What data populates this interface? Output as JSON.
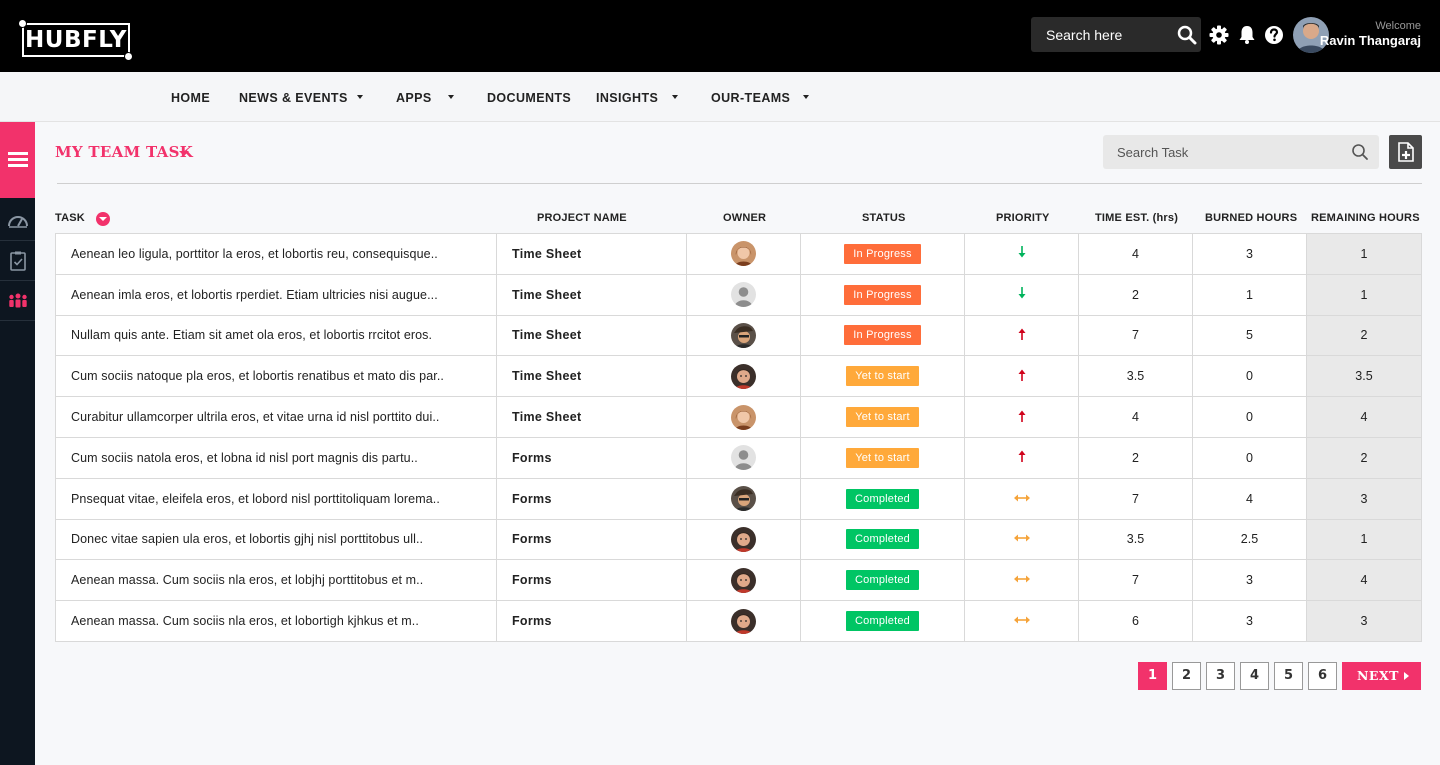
{
  "header": {
    "logo_text": "HUBFLY",
    "search_placeholder": "Search here",
    "welcome_label": "Welcome",
    "user_name": "Ravin Thangaraj"
  },
  "nav": {
    "items": [
      {
        "label": "HOME",
        "dropdown": false
      },
      {
        "label": "NEWS & EVENTS",
        "dropdown": true
      },
      {
        "label": "APPS",
        "dropdown": true
      },
      {
        "label": "DOCUMENTS",
        "dropdown": false
      },
      {
        "label": "INSIGHTS",
        "dropdown": true
      },
      {
        "label": "OUR-TEAMS",
        "dropdown": true
      }
    ]
  },
  "sidebar": {
    "icons": [
      "menu-icon",
      "dashboard-icon",
      "clipboard-icon",
      "team-icon"
    ]
  },
  "main": {
    "title": "MY TEAM TASK",
    "search_placeholder": "Search Task",
    "columns": [
      "TASK",
      "PROJECT NAME",
      "OWNER",
      "STATUS",
      "PRIORITY",
      "TIME EST. (hrs)",
      "BURNED HOURS",
      "REMAINING HOURS"
    ],
    "rows": [
      {
        "task": "Aenean leo ligula, porttitor la eros, et lobortis reu, consequisque..",
        "project": "Time Sheet",
        "owner": "woman-avatar",
        "status": "In Progress",
        "priority": "low",
        "est": "4",
        "burned": "3",
        "remaining": "1"
      },
      {
        "task": "Aenean imla eros, et lobortis rperdiet. Etiam ultricies nisi augue...",
        "project": "Time Sheet",
        "owner": "default-avatar",
        "status": "In Progress",
        "priority": "low",
        "est": "2",
        "burned": "1",
        "remaining": "1"
      },
      {
        "task": "Nullam quis ante. Etiam sit amet ola eros, et lobortis rrcitot eros.",
        "project": "Time Sheet",
        "owner": "hat-man-avatar",
        "status": "In Progress",
        "priority": "high",
        "est": "7",
        "burned": "5",
        "remaining": "2"
      },
      {
        "task": "Cum sociis natoque pla eros, et lobortis renatibus et mato dis par..",
        "project": "Time Sheet",
        "owner": "man-avatar",
        "status": "Yet to start",
        "priority": "high",
        "est": "3.5",
        "burned": "0",
        "remaining": "3.5"
      },
      {
        "task": "Curabitur ullamcorper ultrila eros, et vitae urna id nisl porttito dui..",
        "project": "Time Sheet",
        "owner": "woman-avatar",
        "status": "Yet to start",
        "priority": "high",
        "est": "4",
        "burned": "0",
        "remaining": "4"
      },
      {
        "task": "Cum sociis natola eros, et lobna id nisl port magnis dis partu..",
        "project": "Forms",
        "owner": "default-avatar",
        "status": "Yet to start",
        "priority": "high",
        "est": "2",
        "burned": "0",
        "remaining": "2"
      },
      {
        "task": "Pnsequat vitae, eleifela eros, et lobord nisl porttitoliquam lorema..",
        "project": "Forms",
        "owner": "hat-man-avatar",
        "status": "Completed",
        "priority": "medium",
        "est": "7",
        "burned": "4",
        "remaining": "3"
      },
      {
        "task": "Donec vitae sapien ula eros, et lobortis gjhj nisl porttitobus ull..",
        "project": "Forms",
        "owner": "man-avatar",
        "status": "Completed",
        "priority": "medium",
        "est": "3.5",
        "burned": "2.5",
        "remaining": "1"
      },
      {
        "task": "Aenean massa. Cum sociis nla eros, et lobjhj porttitobus et m..",
        "project": "Forms",
        "owner": "man-avatar",
        "status": "Completed",
        "priority": "medium",
        "est": "7",
        "burned": "3",
        "remaining": "4"
      },
      {
        "task": "Aenean massa. Cum sociis nla eros, et lobortigh kjhkus et m..",
        "project": "Forms",
        "owner": "man-avatar",
        "status": "Completed",
        "priority": "medium",
        "est": "6",
        "burned": "3",
        "remaining": "3"
      }
    ]
  },
  "status_colors": {
    "In Progress": "#ff6d3a",
    "Yet to start": "#ffa93a",
    "Completed": "#00c564"
  },
  "priority_colors": {
    "low": "#00b35c",
    "high": "#d0021b",
    "medium": "#f5a33a"
  },
  "pagination": {
    "pages": [
      "1",
      "2",
      "3",
      "4",
      "5",
      "6"
    ],
    "active": "1",
    "next_label": "NEXT"
  },
  "accent_color": "#f2326b"
}
